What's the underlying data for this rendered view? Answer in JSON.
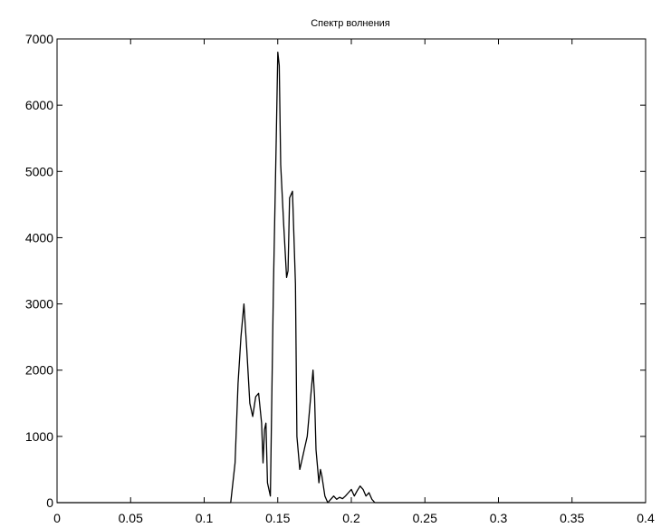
{
  "chart_data": {
    "type": "line",
    "title": "Спектр волнения",
    "xlabel": "",
    "ylabel": "",
    "xlim": [
      0,
      0.4
    ],
    "ylim": [
      0,
      7000
    ],
    "grid": false,
    "x_ticks": [
      0,
      0.05,
      0.1,
      0.15,
      0.2,
      0.25,
      0.3,
      0.35,
      0.4
    ],
    "x_tick_labels": [
      "0",
      "0.05",
      "0.1",
      "0.15",
      "0.2",
      "0.25",
      "0.3",
      "0.35",
      "0.4"
    ],
    "y_ticks": [
      0,
      1000,
      2000,
      3000,
      4000,
      5000,
      6000,
      7000
    ],
    "y_tick_labels": [
      "0",
      "1000",
      "2000",
      "3000",
      "4000",
      "5000",
      "6000",
      "7000"
    ],
    "series": [
      {
        "color": "#000000",
        "x": [
          0,
          0.118,
          0.121,
          0.123,
          0.125,
          0.127,
          0.129,
          0.131,
          0.133,
          0.135,
          0.137,
          0.139,
          0.14,
          0.141,
          0.142,
          0.143,
          0.145,
          0.147,
          0.149,
          0.15,
          0.151,
          0.152,
          0.154,
          0.156,
          0.157,
          0.158,
          0.16,
          0.162,
          0.163,
          0.165,
          0.167,
          0.168,
          0.17,
          0.172,
          0.174,
          0.175,
          0.176,
          0.178,
          0.179,
          0.18,
          0.182,
          0.184,
          0.186,
          0.188,
          0.19,
          0.192,
          0.194,
          0.196,
          0.198,
          0.2,
          0.202,
          0.204,
          0.206,
          0.208,
          0.21,
          0.212,
          0.214,
          0.216,
          0.218,
          0.4
        ],
        "y": [
          0,
          0,
          600,
          1800,
          2500,
          3000,
          2300,
          1500,
          1300,
          1600,
          1650,
          1200,
          600,
          1100,
          1200,
          300,
          100,
          3200,
          5500,
          6800,
          6600,
          5100,
          4200,
          3400,
          3500,
          4600,
          4700,
          3300,
          1000,
          500,
          700,
          800,
          1000,
          1500,
          2000,
          1600,
          800,
          300,
          500,
          400,
          100,
          0,
          50,
          100,
          50,
          80,
          60,
          100,
          150,
          200,
          100,
          180,
          250,
          200,
          100,
          150,
          50,
          0,
          0,
          0
        ]
      }
    ]
  }
}
